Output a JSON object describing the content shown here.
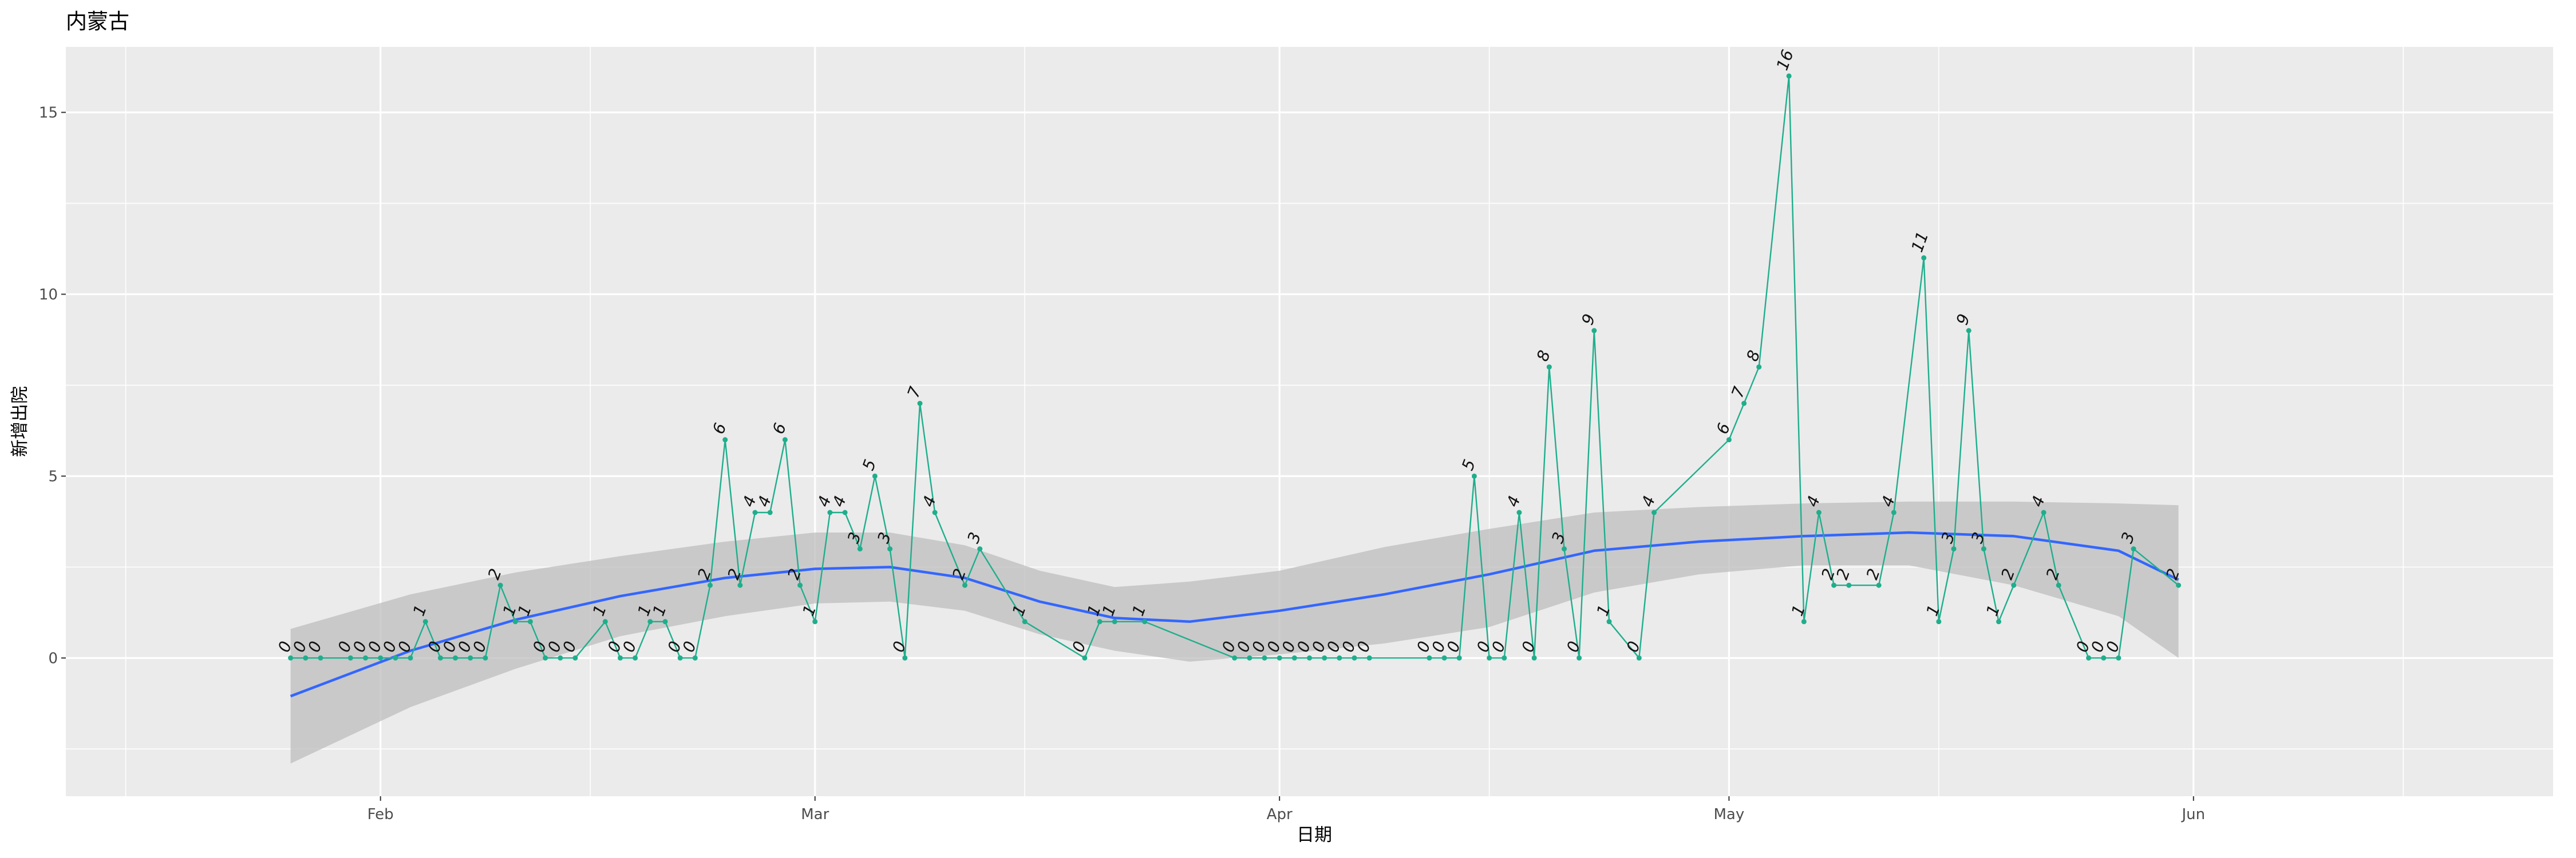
{
  "chart_data": {
    "type": "line",
    "title": "内蒙古",
    "xlabel": "日期",
    "ylabel": "新增出院",
    "x_range": [
      "2020-01-11",
      "2020-06-25"
    ],
    "ylim": [
      -3.8,
      16.8
    ],
    "x_ticks": [
      {
        "date": "2020-02-01",
        "label": "Feb"
      },
      {
        "date": "2020-03-01",
        "label": "Mar"
      },
      {
        "date": "2020-04-01",
        "label": "Apr"
      },
      {
        "date": "2020-05-01",
        "label": "May"
      },
      {
        "date": "2020-06-01",
        "label": "Jun"
      }
    ],
    "x_minor_ticks": [
      "2020-01-15",
      "2020-02-15",
      "2020-03-15",
      "2020-04-15",
      "2020-05-15",
      "2020-06-15"
    ],
    "y_ticks": [
      0,
      5,
      10,
      15
    ],
    "y_minor_ticks": [
      -2.5,
      2.5,
      7.5,
      12.5
    ],
    "grid": true,
    "colors": {
      "panel": "#ebebeb",
      "grid": "#ffffff",
      "line": "#1fae8c",
      "smooth": "#3366ff",
      "ribbon": "#bdbdbd"
    },
    "series": [
      {
        "data": [
          [
            "2020-01-26",
            0
          ],
          [
            "2020-01-27",
            0
          ],
          [
            "2020-01-28",
            0
          ],
          [
            "2020-01-30",
            0
          ],
          [
            "2020-01-31",
            0
          ],
          [
            "2020-02-01",
            0
          ],
          [
            "2020-02-02",
            0
          ],
          [
            "2020-02-03",
            0
          ],
          [
            "2020-02-04",
            1
          ],
          [
            "2020-02-05",
            0
          ],
          [
            "2020-02-06",
            0
          ],
          [
            "2020-02-07",
            0
          ],
          [
            "2020-02-08",
            0
          ],
          [
            "2020-02-09",
            2
          ],
          [
            "2020-02-10",
            1
          ],
          [
            "2020-02-11",
            1
          ],
          [
            "2020-02-12",
            0
          ],
          [
            "2020-02-13",
            0
          ],
          [
            "2020-02-14",
            0
          ],
          [
            "2020-02-16",
            1
          ],
          [
            "2020-02-17",
            0
          ],
          [
            "2020-02-18",
            0
          ],
          [
            "2020-02-19",
            1
          ],
          [
            "2020-02-20",
            1
          ],
          [
            "2020-02-21",
            0
          ],
          [
            "2020-02-22",
            0
          ],
          [
            "2020-02-23",
            2
          ],
          [
            "2020-02-24",
            6
          ],
          [
            "2020-02-25",
            2
          ],
          [
            "2020-02-26",
            4
          ],
          [
            "2020-02-27",
            4
          ],
          [
            "2020-02-28",
            6
          ],
          [
            "2020-02-29",
            2
          ],
          [
            "2020-03-01",
            1
          ],
          [
            "2020-03-02",
            4
          ],
          [
            "2020-03-03",
            4
          ],
          [
            "2020-03-04",
            3
          ],
          [
            "2020-03-05",
            5
          ],
          [
            "2020-03-06",
            3
          ],
          [
            "2020-03-07",
            0
          ],
          [
            "2020-03-08",
            7
          ],
          [
            "2020-03-09",
            4
          ],
          [
            "2020-03-11",
            2
          ],
          [
            "2020-03-12",
            3
          ],
          [
            "2020-03-15",
            1
          ],
          [
            "2020-03-19",
            0
          ],
          [
            "2020-03-20",
            1
          ],
          [
            "2020-03-21",
            1
          ],
          [
            "2020-03-23",
            1
          ],
          [
            "2020-03-29",
            0
          ],
          [
            "2020-03-30",
            0
          ],
          [
            "2020-03-31",
            0
          ],
          [
            "2020-04-01",
            0
          ],
          [
            "2020-04-02",
            0
          ],
          [
            "2020-04-03",
            0
          ],
          [
            "2020-04-04",
            0
          ],
          [
            "2020-04-05",
            0
          ],
          [
            "2020-04-06",
            0
          ],
          [
            "2020-04-07",
            0
          ],
          [
            "2020-04-11",
            0
          ],
          [
            "2020-04-12",
            0
          ],
          [
            "2020-04-13",
            0
          ],
          [
            "2020-04-14",
            5
          ],
          [
            "2020-04-15",
            0
          ],
          [
            "2020-04-16",
            0
          ],
          [
            "2020-04-17",
            4
          ],
          [
            "2020-04-18",
            0
          ],
          [
            "2020-04-19",
            8
          ],
          [
            "2020-04-20",
            3
          ],
          [
            "2020-04-21",
            0
          ],
          [
            "2020-04-22",
            9
          ],
          [
            "2020-04-23",
            1
          ],
          [
            "2020-04-25",
            0
          ],
          [
            "2020-04-26",
            4
          ],
          [
            "2020-05-01",
            6
          ],
          [
            "2020-05-02",
            7
          ],
          [
            "2020-05-03",
            8
          ],
          [
            "2020-05-05",
            16
          ],
          [
            "2020-05-06",
            1
          ],
          [
            "2020-05-07",
            4
          ],
          [
            "2020-05-08",
            2
          ],
          [
            "2020-05-09",
            2
          ],
          [
            "2020-05-11",
            2
          ],
          [
            "2020-05-12",
            4
          ],
          [
            "2020-05-14",
            11
          ],
          [
            "2020-05-15",
            1
          ],
          [
            "2020-05-16",
            3
          ],
          [
            "2020-05-17",
            9
          ],
          [
            "2020-05-18",
            3
          ],
          [
            "2020-05-19",
            1
          ],
          [
            "2020-05-20",
            2
          ],
          [
            "2020-05-22",
            4
          ],
          [
            "2020-05-23",
            2
          ],
          [
            "2020-05-25",
            0
          ],
          [
            "2020-05-26",
            0
          ],
          [
            "2020-05-27",
            0
          ],
          [
            "2020-05-28",
            3
          ],
          [
            "2020-05-31",
            2
          ]
        ]
      }
    ],
    "smooth": {
      "x": [
        "2020-01-26",
        "2020-02-03",
        "2020-02-10",
        "2020-02-17",
        "2020-02-24",
        "2020-03-01",
        "2020-03-06",
        "2020-03-11",
        "2020-03-16",
        "2020-03-21",
        "2020-03-26",
        "2020-04-01",
        "2020-04-08",
        "2020-04-15",
        "2020-04-22",
        "2020-04-29",
        "2020-05-06",
        "2020-05-13",
        "2020-05-20",
        "2020-05-27",
        "2020-05-31"
      ],
      "y": [
        -1.05,
        0.2,
        1.05,
        1.7,
        2.2,
        2.45,
        2.5,
        2.2,
        1.55,
        1.1,
        1.0,
        1.3,
        1.75,
        2.3,
        2.95,
        3.2,
        3.35,
        3.45,
        3.35,
        2.95,
        2.15
      ],
      "lower": [
        -2.9,
        -1.35,
        -0.3,
        0.6,
        1.15,
        1.5,
        1.55,
        1.3,
        0.65,
        0.2,
        -0.1,
        0.1,
        0.4,
        0.85,
        1.8,
        2.3,
        2.55,
        2.55,
        2.0,
        1.15,
        0.0
      ],
      "upper": [
        0.8,
        1.75,
        2.35,
        2.8,
        3.2,
        3.45,
        3.45,
        3.1,
        2.4,
        1.95,
        2.1,
        2.4,
        3.05,
        3.55,
        4.0,
        4.15,
        4.25,
        4.3,
        4.3,
        4.25,
        4.2
      ]
    }
  }
}
